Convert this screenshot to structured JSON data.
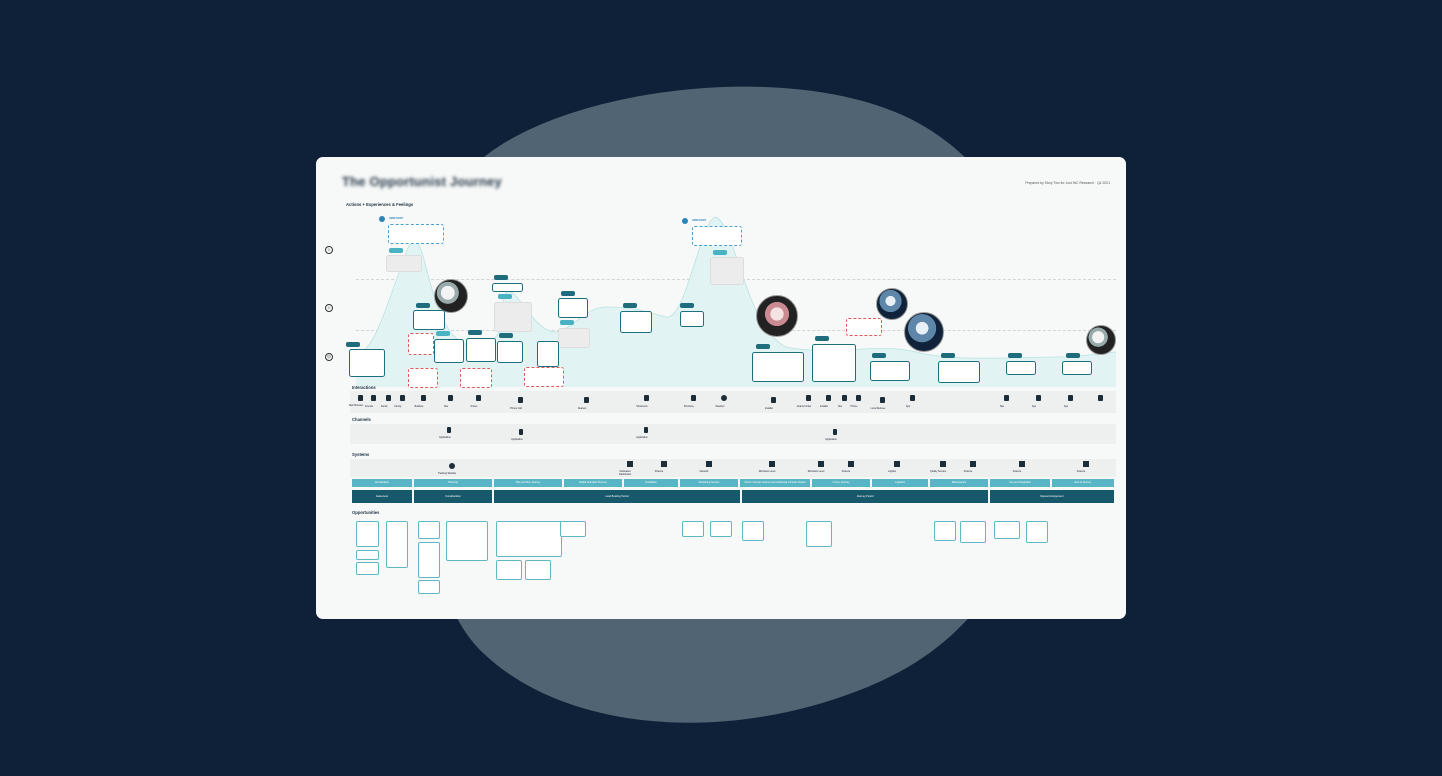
{
  "title": "The Opportunist Journey",
  "credit": "Prepared by Story Two for Just INC Research · Q4 2021",
  "sections": {
    "actions": "Actions + Experiences & Feelings",
    "interactions": "Interactions",
    "channels": "Channels",
    "systems": "Systems",
    "opportunities": "Opportunities"
  },
  "moods": {
    "top": "☺",
    "mid": "☺",
    "low": "☹"
  },
  "hints": {
    "h1": "HMW POINT",
    "h2": "HMW POINT"
  },
  "bars_light": [
    "Identification",
    "Planning",
    "Plan and Buy Journey",
    "Digital Selection Process",
    "Installation",
    "Monitoring Service",
    "Check / Accept Journey and Gathering Contract Details",
    "In Use Journey",
    "Logistics",
    "Maintenance",
    "Use and Integration",
    "End of Journey"
  ],
  "bars_dark": [
    "Awareness",
    "Consideration",
    "Lead Booking Period",
    "Journey Period",
    "Repeat Arrangement"
  ],
  "interaction_labels": [
    "Web Browser",
    "Friends",
    "Social",
    "Family",
    "Builders",
    "Site",
    "Prices",
    "Phone Call",
    "Nearest",
    "Showroom",
    "Brochure",
    "Weather",
    "Installer",
    "Grants Finder",
    "Installer",
    "Site",
    "Phone",
    "Local Referee",
    "App",
    "Site",
    "App",
    "App"
  ],
  "channel_labels": [
    "Application",
    "Application",
    "Application",
    "Application"
  ],
  "system_labels": [
    "Tracking Website",
    "Dedicated Dashboard",
    "Finance",
    "Network",
    "Mechanic Level",
    "Mechanic Level",
    "Finance",
    "Logistic",
    "Quality Service",
    "Finance",
    "Finance",
    "Finance"
  ]
}
